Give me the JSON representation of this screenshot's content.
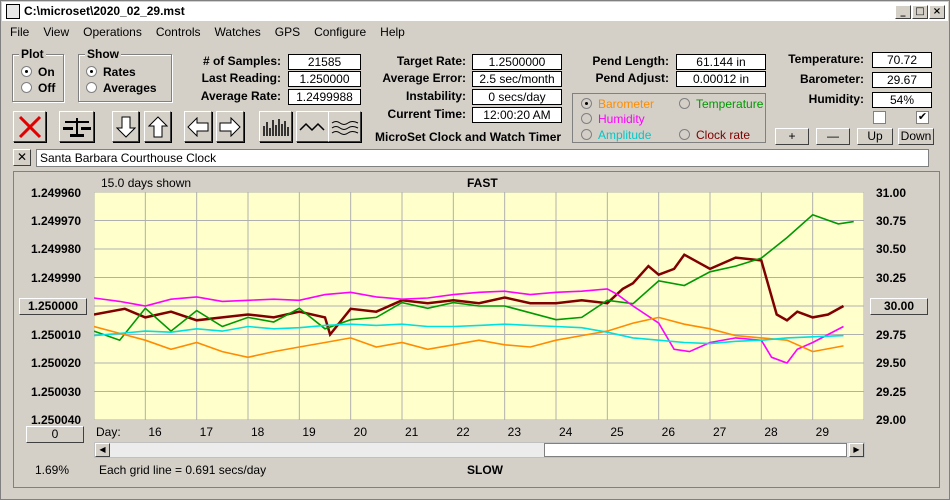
{
  "window": {
    "title": "C:\\microset\\2020_02_29.mst"
  },
  "menu": [
    "File",
    "View",
    "Operations",
    "Controls",
    "Watches",
    "GPS",
    "Configure",
    "Help"
  ],
  "plot_group": {
    "title": "Plot",
    "on": "On",
    "off": "Off",
    "selected": "On"
  },
  "show_group": {
    "title": "Show",
    "rates": "Rates",
    "averages": "Averages",
    "selected": "Rates"
  },
  "stats": {
    "samples_label": "# of Samples:",
    "samples": "21585",
    "last_reading_label": "Last Reading:",
    "last_reading": "1.250000",
    "average_rate_label": "Average Rate:",
    "average_rate": "1.2499988",
    "target_rate_label": "Target Rate:",
    "target_rate": "1.2500000",
    "average_error_label": "Average Error:",
    "average_error": "2.5 sec/month",
    "instability_label": "Instability:",
    "instability": "0 secs/day",
    "current_time_label": "Current Time:",
    "current_time": "12:00:20 AM",
    "app_caption": "MicroSet Clock and Watch Timer",
    "pend_length_label": "Pend Length:",
    "pend_length": "61.144 in",
    "pend_adjust_label": "Pend Adjust:",
    "pend_adjust": "0.00012 in",
    "temperature_label": "Temperature:",
    "temperature": "70.72",
    "barometer_label": "Barometer:",
    "barometer": "29.67",
    "humidity_label": "Humidity:",
    "humidity": "54%"
  },
  "legend": {
    "barometer": "Barometer",
    "temperature": "Temperature",
    "humidity": "Humidity",
    "amplitude": "Amplitude",
    "clock_rate": "Clock rate",
    "selected": "Barometer"
  },
  "right_buttons": {
    "plus": "+",
    "minus": "—",
    "up": "Up",
    "down": "Down"
  },
  "checkboxes": {
    "left": false,
    "right": true
  },
  "clock_name": "Santa Barbara Courthouse Clock",
  "colors": {
    "barometer": "#ff8c00",
    "temperature": "#009900",
    "humidity": "#ff00ff",
    "amplitude": "#00e0e0",
    "clock_rate": "#800000",
    "plot_bg": "#ffffcc"
  },
  "chart_data": {
    "type": "line",
    "days_shown": "15.0 days shown",
    "top_label": "FAST",
    "bottom_label": "SLOW",
    "grid_note": "Each grid line = 0.691 secs/day",
    "left_percent": "1.69%",
    "left_center_button": "1.250000",
    "left_bottom_button": "0",
    "right_center_button": "30.00",
    "x_label": "Day:",
    "x_ticks": [
      "16",
      "17",
      "18",
      "19",
      "20",
      "21",
      "22",
      "23",
      "24",
      "25",
      "26",
      "27",
      "28",
      "29"
    ],
    "x_range": [
      15,
      30
    ],
    "y_left": {
      "ticks": [
        "1.249960",
        "1.249970",
        "1.249980",
        "1.249990",
        "",
        "1.250010",
        "1.250020",
        "1.250030",
        "1.250040"
      ],
      "range": [
        1.24996,
        1.25004
      ]
    },
    "y_right": {
      "ticks": [
        "31.00",
        "30.75",
        "30.50",
        "30.25",
        "",
        "29.75",
        "29.50",
        "29.25",
        "29.00"
      ],
      "range": [
        29.0,
        31.0
      ]
    },
    "series": [
      {
        "name": "Clock rate",
        "color_key": "clock_rate",
        "axis": "left",
        "x": [
          15.0,
          15.6,
          16.0,
          16.5,
          17.0,
          17.5,
          18.0,
          18.5,
          19.0,
          19.5,
          19.6,
          20.0,
          20.5,
          21.0,
          21.5,
          22.0,
          22.5,
          23.0,
          23.5,
          24.0,
          24.5,
          25.0,
          25.3,
          25.5,
          25.8,
          26.0,
          26.3,
          26.5,
          26.8,
          27.0,
          27.5,
          28.0,
          28.3,
          28.5,
          28.7,
          29.0,
          29.3,
          29.6
        ],
        "y": [
          1.250003,
          1.250001,
          1.250004,
          1.250002,
          1.250005,
          1.250004,
          1.250003,
          1.250004,
          1.250002,
          1.250004,
          1.25001,
          1.250001,
          1.250002,
          1.249998,
          1.249999,
          1.249998,
          1.249999,
          1.249997,
          1.249999,
          1.249999,
          1.249998,
          1.249999,
          1.249994,
          1.249992,
          1.249986,
          1.249989,
          1.249987,
          1.249982,
          1.249985,
          1.249987,
          1.249983,
          1.249984,
          1.250003,
          1.250005,
          1.250002,
          1.250004,
          1.250003,
          1.25
        ]
      },
      {
        "name": "Temperature",
        "color_key": "temperature",
        "axis": "right",
        "x": [
          15.0,
          15.5,
          16.0,
          16.5,
          17.0,
          17.5,
          18.0,
          18.5,
          19.0,
          19.5,
          20.0,
          20.5,
          21.0,
          21.5,
          22.0,
          22.5,
          23.0,
          23.5,
          24.0,
          24.5,
          25.0,
          25.5,
          26.0,
          26.5,
          27.0,
          27.5,
          28.0,
          28.5,
          29.0,
          29.5,
          29.8
        ],
        "y": [
          29.78,
          29.7,
          29.98,
          29.78,
          29.96,
          29.82,
          29.9,
          29.86,
          29.98,
          29.8,
          29.88,
          29.9,
          30.03,
          29.98,
          30.03,
          30.0,
          30.0,
          29.94,
          29.88,
          29.9,
          30.05,
          30.02,
          30.22,
          30.18,
          30.3,
          30.35,
          30.42,
          30.6,
          30.8,
          30.72,
          30.74
        ]
      },
      {
        "name": "Humidity",
        "color_key": "humidity",
        "axis": "right",
        "x": [
          15.0,
          15.5,
          16.0,
          16.5,
          17.0,
          17.5,
          18.0,
          18.5,
          19.0,
          19.5,
          20.0,
          20.5,
          21.0,
          21.5,
          22.0,
          22.5,
          23.0,
          23.5,
          24.0,
          24.5,
          25.0,
          25.2,
          25.5,
          26.0,
          26.3,
          26.6,
          27.0,
          27.5,
          28.0,
          28.2,
          28.5,
          28.7,
          29.0,
          29.6
        ],
        "y": [
          30.07,
          30.04,
          30.0,
          30.06,
          30.08,
          30.04,
          30.05,
          30.06,
          30.05,
          30.1,
          30.12,
          30.08,
          30.06,
          30.07,
          30.1,
          30.12,
          30.13,
          30.1,
          30.12,
          30.13,
          30.15,
          30.1,
          30.0,
          29.85,
          29.62,
          29.6,
          29.68,
          29.72,
          29.7,
          29.55,
          29.5,
          29.62,
          29.68,
          29.82
        ]
      },
      {
        "name": "Barometer",
        "color_key": "barometer",
        "axis": "right",
        "x": [
          15.0,
          15.5,
          16.0,
          16.5,
          17.0,
          17.5,
          18.0,
          18.5,
          19.0,
          19.5,
          20.0,
          20.5,
          21.0,
          21.5,
          22.0,
          22.5,
          23.0,
          23.5,
          24.0,
          24.5,
          25.0,
          25.5,
          26.0,
          26.5,
          27.0,
          27.5,
          28.0,
          28.5,
          29.0,
          29.6
        ],
        "y": [
          29.82,
          29.76,
          29.7,
          29.62,
          29.68,
          29.6,
          29.55,
          29.6,
          29.64,
          29.68,
          29.72,
          29.64,
          29.68,
          29.62,
          29.66,
          29.7,
          29.66,
          29.64,
          29.7,
          29.74,
          29.78,
          29.85,
          29.9,
          29.84,
          29.8,
          29.74,
          29.72,
          29.7,
          29.6,
          29.65
        ]
      },
      {
        "name": "Amplitude",
        "color_key": "amplitude",
        "axis": "right",
        "x": [
          15.0,
          15.5,
          16.0,
          16.5,
          17.0,
          17.5,
          18.0,
          18.5,
          19.0,
          19.5,
          20.0,
          20.5,
          21.0,
          21.5,
          22.0,
          22.5,
          23.0,
          23.5,
          24.0,
          24.5,
          25.0,
          25.5,
          26.0,
          26.5,
          27.0,
          27.5,
          28.0,
          28.5,
          29.0,
          29.6
        ],
        "y": [
          29.74,
          29.76,
          29.78,
          29.77,
          29.8,
          29.78,
          29.82,
          29.8,
          29.81,
          29.83,
          29.84,
          29.83,
          29.84,
          29.82,
          29.82,
          29.83,
          29.84,
          29.83,
          29.82,
          29.81,
          29.77,
          29.72,
          29.7,
          29.68,
          29.67,
          29.69,
          29.7,
          29.72,
          29.73,
          29.74
        ]
      }
    ]
  },
  "scrollbar": {
    "left_arrow": "◀",
    "right_arrow": "▶"
  }
}
